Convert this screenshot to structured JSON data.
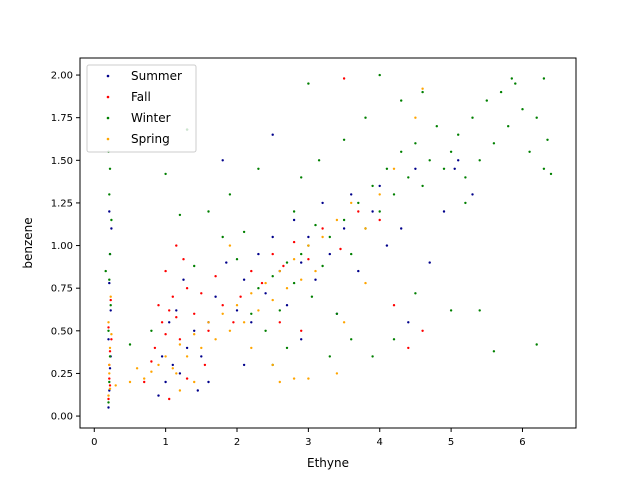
{
  "chart_data": {
    "type": "scatter",
    "title": "",
    "xlabel": "Ethyne",
    "ylabel": "benzene",
    "xlim": [
      -0.2,
      6.75
    ],
    "ylim": [
      -0.07,
      2.1
    ],
    "xticks": [
      0,
      1,
      2,
      3,
      4,
      5,
      6
    ],
    "yticks": [
      "0.00",
      "0.25",
      "0.50",
      "0.75",
      "1.00",
      "1.25",
      "1.50",
      "1.75",
      "2.00"
    ],
    "grid": false,
    "legend_position": "top-left",
    "series": [
      {
        "name": "Summer",
        "color": "#00008b",
        "points": [
          [
            0.2,
            0.05
          ],
          [
            0.21,
            0.15
          ],
          [
            0.22,
            0.28
          ],
          [
            0.2,
            0.45
          ],
          [
            0.23,
            0.62
          ],
          [
            0.21,
            0.78
          ],
          [
            0.22,
            0.95
          ],
          [
            0.24,
            1.1
          ],
          [
            0.21,
            1.2
          ],
          [
            0.23,
            0.35
          ],
          [
            0.9,
            0.12
          ],
          [
            1.0,
            0.2
          ],
          [
            1.1,
            0.3
          ],
          [
            1.2,
            0.25
          ],
          [
            0.95,
            0.35
          ],
          [
            1.3,
            0.4
          ],
          [
            1.05,
            0.55
          ],
          [
            1.15,
            0.62
          ],
          [
            1.4,
            0.5
          ],
          [
            1.25,
            0.8
          ],
          [
            1.5,
            0.35
          ],
          [
            1.6,
            0.55
          ],
          [
            1.7,
            0.7
          ],
          [
            1.85,
            0.9
          ],
          [
            2.0,
            0.62
          ],
          [
            2.1,
            0.8
          ],
          [
            2.2,
            0.55
          ],
          [
            2.3,
            0.95
          ],
          [
            2.4,
            0.72
          ],
          [
            2.5,
            1.05
          ],
          [
            2.6,
            0.85
          ],
          [
            2.7,
            0.65
          ],
          [
            2.8,
            1.15
          ],
          [
            2.9,
            0.9
          ],
          [
            3.0,
            1.05
          ],
          [
            3.1,
            0.8
          ],
          [
            3.2,
            1.25
          ],
          [
            3.3,
            0.95
          ],
          [
            3.5,
            1.1
          ],
          [
            3.6,
            1.3
          ],
          [
            3.7,
            0.85
          ],
          [
            3.9,
            1.2
          ],
          [
            4.0,
            1.35
          ],
          [
            4.1,
            1.0
          ],
          [
            4.3,
            1.1
          ],
          [
            4.5,
            1.45
          ],
          [
            4.7,
            0.9
          ],
          [
            4.9,
            1.2
          ],
          [
            5.1,
            1.5
          ],
          [
            5.3,
            1.3
          ],
          [
            1.8,
            1.5
          ],
          [
            2.5,
            1.65
          ],
          [
            1.3,
            1.68
          ],
          [
            2.9,
            0.45
          ],
          [
            3.4,
            0.6
          ],
          [
            2.1,
            0.3
          ],
          [
            1.45,
            0.15
          ],
          [
            1.6,
            0.2
          ],
          [
            4.4,
            0.55
          ],
          [
            5.05,
            1.45
          ]
        ]
      },
      {
        "name": "Fall",
        "color": "#ff0000",
        "points": [
          [
            0.2,
            0.1
          ],
          [
            0.21,
            0.22
          ],
          [
            0.22,
            0.38
          ],
          [
            0.2,
            0.52
          ],
          [
            0.23,
            0.68
          ],
          [
            0.21,
            0.3
          ],
          [
            0.22,
            0.18
          ],
          [
            0.24,
            0.45
          ],
          [
            0.85,
            0.4
          ],
          [
            0.95,
            0.55
          ],
          [
            1.0,
            0.48
          ],
          [
            1.05,
            0.62
          ],
          [
            1.1,
            0.7
          ],
          [
            1.15,
            0.58
          ],
          [
            1.2,
            0.45
          ],
          [
            0.9,
            0.65
          ],
          [
            1.3,
            0.75
          ],
          [
            1.0,
            0.85
          ],
          [
            1.25,
            0.92
          ],
          [
            1.4,
            0.6
          ],
          [
            1.5,
            0.72
          ],
          [
            1.6,
            0.5
          ],
          [
            1.7,
            0.82
          ],
          [
            1.8,
            0.65
          ],
          [
            1.95,
            0.55
          ],
          [
            2.05,
            0.7
          ],
          [
            2.2,
            0.85
          ],
          [
            2.35,
            0.78
          ],
          [
            2.5,
            0.95
          ],
          [
            2.65,
            0.88
          ],
          [
            2.8,
            1.02
          ],
          [
            3.0,
            0.92
          ],
          [
            3.2,
            1.1
          ],
          [
            3.45,
            0.98
          ],
          [
            3.7,
            1.2
          ],
          [
            4.0,
            1.15
          ],
          [
            4.2,
            0.65
          ],
          [
            4.4,
            0.4
          ],
          [
            3.5,
            1.98
          ],
          [
            1.05,
            0.1
          ],
          [
            1.3,
            0.22
          ],
          [
            0.7,
            0.2
          ],
          [
            0.8,
            0.32
          ],
          [
            1.55,
            0.3
          ],
          [
            2.6,
            0.55
          ],
          [
            2.9,
            0.5
          ],
          [
            4.6,
            0.5
          ],
          [
            1.15,
            1.0
          ]
        ]
      },
      {
        "name": "Winter",
        "color": "#008000",
        "points": [
          [
            0.2,
            0.08
          ],
          [
            0.21,
            0.2
          ],
          [
            0.22,
            0.35
          ],
          [
            0.2,
            0.5
          ],
          [
            0.23,
            0.65
          ],
          [
            0.21,
            0.8
          ],
          [
            0.22,
            0.95
          ],
          [
            0.24,
            1.15
          ],
          [
            0.21,
            1.3
          ],
          [
            0.22,
            1.45
          ],
          [
            0.2,
            1.55
          ],
          [
            0.16,
            0.85
          ],
          [
            0.5,
            0.42
          ],
          [
            0.8,
            0.5
          ],
          [
            1.0,
            1.42
          ],
          [
            1.2,
            1.18
          ],
          [
            1.4,
            0.88
          ],
          [
            1.6,
            1.2
          ],
          [
            1.8,
            1.05
          ],
          [
            1.9,
            1.3
          ],
          [
            2.0,
            0.92
          ],
          [
            2.1,
            1.08
          ],
          [
            2.2,
            0.6
          ],
          [
            2.3,
            0.75
          ],
          [
            2.4,
            0.5
          ],
          [
            2.5,
            0.82
          ],
          [
            2.6,
            0.62
          ],
          [
            2.7,
            0.9
          ],
          [
            2.8,
            0.78
          ],
          [
            2.9,
            0.95
          ],
          [
            3.0,
            1.0
          ],
          [
            3.05,
            0.7
          ],
          [
            3.1,
            1.12
          ],
          [
            3.2,
            0.88
          ],
          [
            3.3,
            1.05
          ],
          [
            3.4,
            0.6
          ],
          [
            3.5,
            1.15
          ],
          [
            3.6,
            0.95
          ],
          [
            3.7,
            1.25
          ],
          [
            3.8,
            1.1
          ],
          [
            3.9,
            1.35
          ],
          [
            4.0,
            1.2
          ],
          [
            4.1,
            1.45
          ],
          [
            4.2,
            1.3
          ],
          [
            4.3,
            1.55
          ],
          [
            4.4,
            1.4
          ],
          [
            4.5,
            1.6
          ],
          [
            4.6,
            1.35
          ],
          [
            4.7,
            1.5
          ],
          [
            4.8,
            1.7
          ],
          [
            4.9,
            1.45
          ],
          [
            5.0,
            1.55
          ],
          [
            5.1,
            1.65
          ],
          [
            5.2,
            1.4
          ],
          [
            5.3,
            1.75
          ],
          [
            5.4,
            1.5
          ],
          [
            5.5,
            1.85
          ],
          [
            5.6,
            1.6
          ],
          [
            5.7,
            1.9
          ],
          [
            5.8,
            1.7
          ],
          [
            5.9,
            1.95
          ],
          [
            6.0,
            1.8
          ],
          [
            6.1,
            1.55
          ],
          [
            6.2,
            1.75
          ],
          [
            6.3,
            1.98
          ],
          [
            6.4,
            1.42
          ],
          [
            6.35,
            1.62
          ],
          [
            4.0,
            2.0
          ],
          [
            3.0,
            1.95
          ],
          [
            5.85,
            1.98
          ],
          [
            6.3,
            1.45
          ],
          [
            6.2,
            0.42
          ],
          [
            5.6,
            0.38
          ],
          [
            5.4,
            0.62
          ],
          [
            5.0,
            0.62
          ],
          [
            4.5,
            0.72
          ],
          [
            4.2,
            0.45
          ],
          [
            3.9,
            0.35
          ],
          [
            3.6,
            0.45
          ],
          [
            3.3,
            0.35
          ],
          [
            2.7,
            0.4
          ],
          [
            2.5,
            0.3
          ],
          [
            2.9,
            1.4
          ],
          [
            3.5,
            1.62
          ],
          [
            4.3,
            1.85
          ],
          [
            3.8,
            1.75
          ],
          [
            2.3,
            1.45
          ],
          [
            1.3,
            1.68
          ],
          [
            2.8,
            1.2
          ],
          [
            3.15,
            1.5
          ],
          [
            4.6,
            1.9
          ],
          [
            5.2,
            1.25
          ]
        ]
      },
      {
        "name": "Spring",
        "color": "#ffa500",
        "points": [
          [
            0.2,
            0.12
          ],
          [
            0.21,
            0.25
          ],
          [
            0.22,
            0.4
          ],
          [
            0.2,
            0.55
          ],
          [
            0.23,
            0.7
          ],
          [
            0.21,
            0.3
          ],
          [
            0.22,
            0.16
          ],
          [
            0.24,
            0.48
          ],
          [
            0.3,
            0.18
          ],
          [
            0.5,
            0.2
          ],
          [
            0.6,
            0.28
          ],
          [
            0.7,
            0.22
          ],
          [
            0.8,
            0.26
          ],
          [
            0.9,
            0.3
          ],
          [
            1.0,
            0.35
          ],
          [
            1.1,
            0.28
          ],
          [
            1.2,
            0.42
          ],
          [
            1.3,
            0.35
          ],
          [
            1.4,
            0.48
          ],
          [
            1.5,
            0.4
          ],
          [
            1.6,
            0.55
          ],
          [
            1.7,
            0.45
          ],
          [
            1.8,
            0.6
          ],
          [
            1.9,
            0.5
          ],
          [
            2.0,
            0.65
          ],
          [
            2.1,
            0.55
          ],
          [
            2.2,
            0.72
          ],
          [
            2.3,
            0.62
          ],
          [
            2.4,
            0.78
          ],
          [
            2.5,
            0.68
          ],
          [
            2.6,
            0.85
          ],
          [
            2.7,
            0.75
          ],
          [
            2.8,
            0.92
          ],
          [
            2.9,
            0.8
          ],
          [
            3.0,
            1.0
          ],
          [
            3.1,
            0.85
          ],
          [
            3.2,
            1.05
          ],
          [
            3.4,
            1.15
          ],
          [
            3.6,
            1.25
          ],
          [
            3.8,
            1.1
          ],
          [
            4.0,
            1.3
          ],
          [
            4.2,
            1.45
          ],
          [
            4.5,
            1.75
          ],
          [
            4.6,
            1.92
          ],
          [
            3.4,
            0.25
          ],
          [
            3.0,
            0.22
          ],
          [
            2.8,
            0.22
          ],
          [
            2.5,
            0.3
          ],
          [
            1.9,
            1.0
          ],
          [
            2.2,
            0.4
          ],
          [
            3.5,
            0.55
          ],
          [
            3.8,
            0.78
          ],
          [
            1.2,
            0.15
          ],
          [
            1.4,
            0.2
          ],
          [
            1.15,
            0.25
          ],
          [
            2.6,
            0.2
          ]
        ]
      }
    ]
  }
}
